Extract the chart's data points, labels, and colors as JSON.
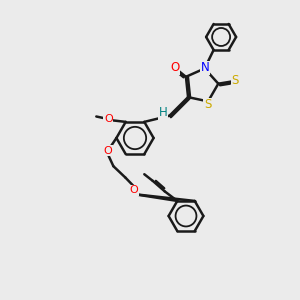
{
  "background_color": "#ebebeb",
  "atom_colors": {
    "O": "#ff0000",
    "N": "#0000ff",
    "S": "#ccaa00",
    "H": "#008080"
  },
  "bond_color": "#1a1a1a",
  "bond_width": 1.8,
  "figsize": [
    3.0,
    3.0
  ],
  "dpi": 100,
  "xlim": [
    0.0,
    10.0
  ],
  "ylim": [
    0.0,
    10.0
  ]
}
